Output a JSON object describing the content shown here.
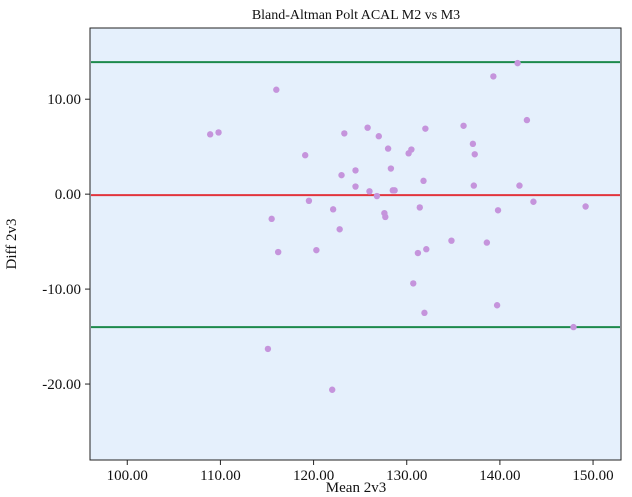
{
  "chart_data": {
    "type": "scatter",
    "title": "Bland-Altman Polt ACAL M2 vs M3",
    "xlabel": "Mean 2v3",
    "ylabel": "Diff 2v3",
    "xlim": [
      96.0,
      153.0
    ],
    "ylim": [
      -28.0,
      17.5
    ],
    "xticks": [
      "100.00",
      "110.00",
      "120.00",
      "130.00",
      "140.00",
      "150.00"
    ],
    "xtick_values": [
      100,
      110,
      120,
      130,
      140,
      150
    ],
    "yticks": [
      "10.00",
      "0.00",
      "-10.00",
      "-20.00"
    ],
    "ytick_values": [
      10,
      0,
      -10,
      -20
    ],
    "grid": false,
    "colors": {
      "plot_background": "#e5f0fc",
      "points": "#c594dc",
      "mean_line": "#e2343d",
      "limit_lines": "#1c8a4c"
    },
    "reference_lines": [
      {
        "role": "upper limit of agreement",
        "y": 13.9
      },
      {
        "role": "mean difference",
        "y": -0.1
      },
      {
        "role": "lower limit of agreement",
        "y": -14.0
      }
    ],
    "points": {
      "x": [
        108.9,
        109.8,
        116.0,
        115.5,
        116.2,
        115.1,
        119.1,
        119.5,
        120.3,
        122.1,
        122.0,
        123.0,
        122.8,
        123.3,
        124.5,
        124.5,
        125.8,
        126.0,
        126.8,
        127.0,
        127.6,
        127.7,
        128.0,
        128.3,
        128.5,
        128.7,
        130.2,
        130.5,
        130.7,
        131.2,
        131.4,
        131.8,
        131.9,
        132.0,
        132.1,
        134.8,
        136.1,
        137.1,
        137.3,
        137.2,
        138.6,
        139.3,
        139.7,
        139.8,
        141.9,
        142.1,
        142.9,
        143.6,
        147.9,
        149.2
      ],
      "y": [
        6.3,
        6.5,
        11.0,
        -2.6,
        -6.1,
        -16.3,
        4.1,
        -0.7,
        -5.9,
        -1.6,
        -20.6,
        2.0,
        -3.7,
        6.4,
        2.5,
        0.8,
        7.0,
        0.3,
        -0.2,
        6.1,
        -2.0,
        -2.4,
        4.8,
        2.7,
        0.4,
        0.4,
        4.3,
        4.7,
        -9.4,
        -6.2,
        -1.4,
        1.4,
        -12.5,
        6.9,
        -5.8,
        -4.9,
        7.2,
        5.3,
        4.2,
        0.9,
        -5.1,
        12.4,
        -11.7,
        -1.7,
        13.8,
        0.9,
        7.8,
        -0.8,
        -14.0,
        -1.3
      ]
    }
  }
}
